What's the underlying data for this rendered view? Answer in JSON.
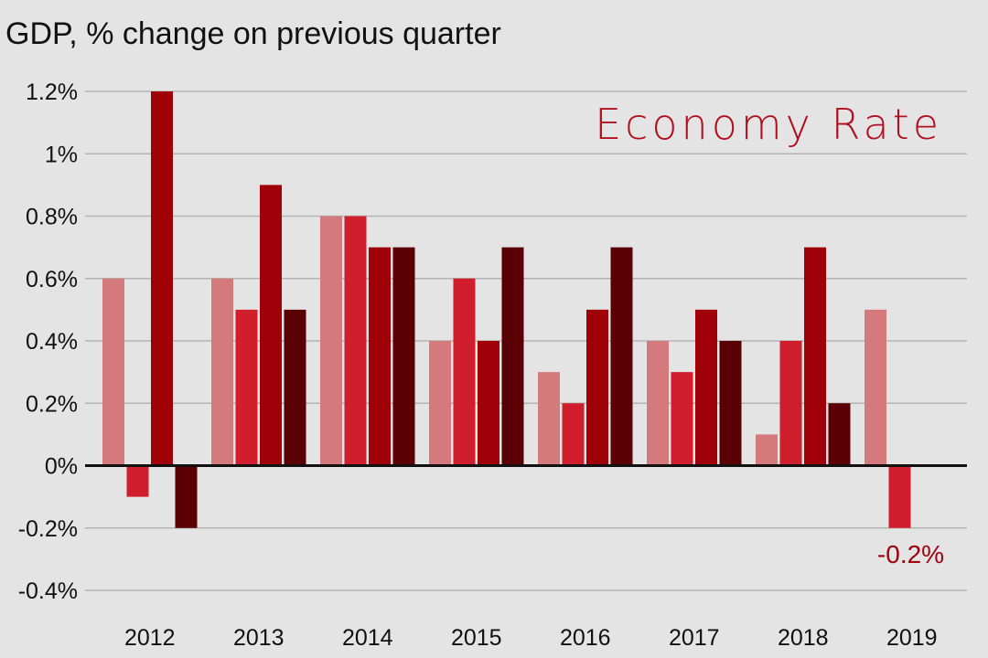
{
  "chart_data": {
    "type": "bar",
    "title": "GDP, % change on previous quarter",
    "decorative_title": "Economy Rate",
    "categories": [
      "2012",
      "2013",
      "2014",
      "2015",
      "2016",
      "2017",
      "2018",
      "2019"
    ],
    "series": [
      {
        "color": "#d47a7c",
        "values": [
          0.6,
          0.6,
          0.8,
          0.4,
          0.3,
          0.4,
          0.1,
          0.5
        ]
      },
      {
        "color": "#d01e2c",
        "values": [
          -0.1,
          0.5,
          0.8,
          0.6,
          0.2,
          0.3,
          0.4,
          -0.2
        ]
      },
      {
        "color": "#a00008",
        "values": [
          1.2,
          0.9,
          0.7,
          0.4,
          0.5,
          0.5,
          0.7,
          null
        ]
      },
      {
        "color": "#5a0004",
        "values": [
          -0.2,
          0.5,
          0.7,
          0.7,
          0.7,
          0.4,
          0.2,
          null
        ]
      }
    ],
    "ylim": [
      -0.4,
      1.2
    ],
    "yticks": [
      1.2,
      1.0,
      0.8,
      0.6,
      0.4,
      0.2,
      0,
      -0.2,
      -0.4
    ],
    "ytick_labels": [
      "1.2%",
      "1%",
      "0.8%",
      "0.6%",
      "0.4%",
      "0.2%",
      "0%",
      "-0.2%",
      "-0.4%"
    ],
    "grid": true,
    "annotation": {
      "text": "-0.2%",
      "category": "2019",
      "series_index": 1
    }
  }
}
